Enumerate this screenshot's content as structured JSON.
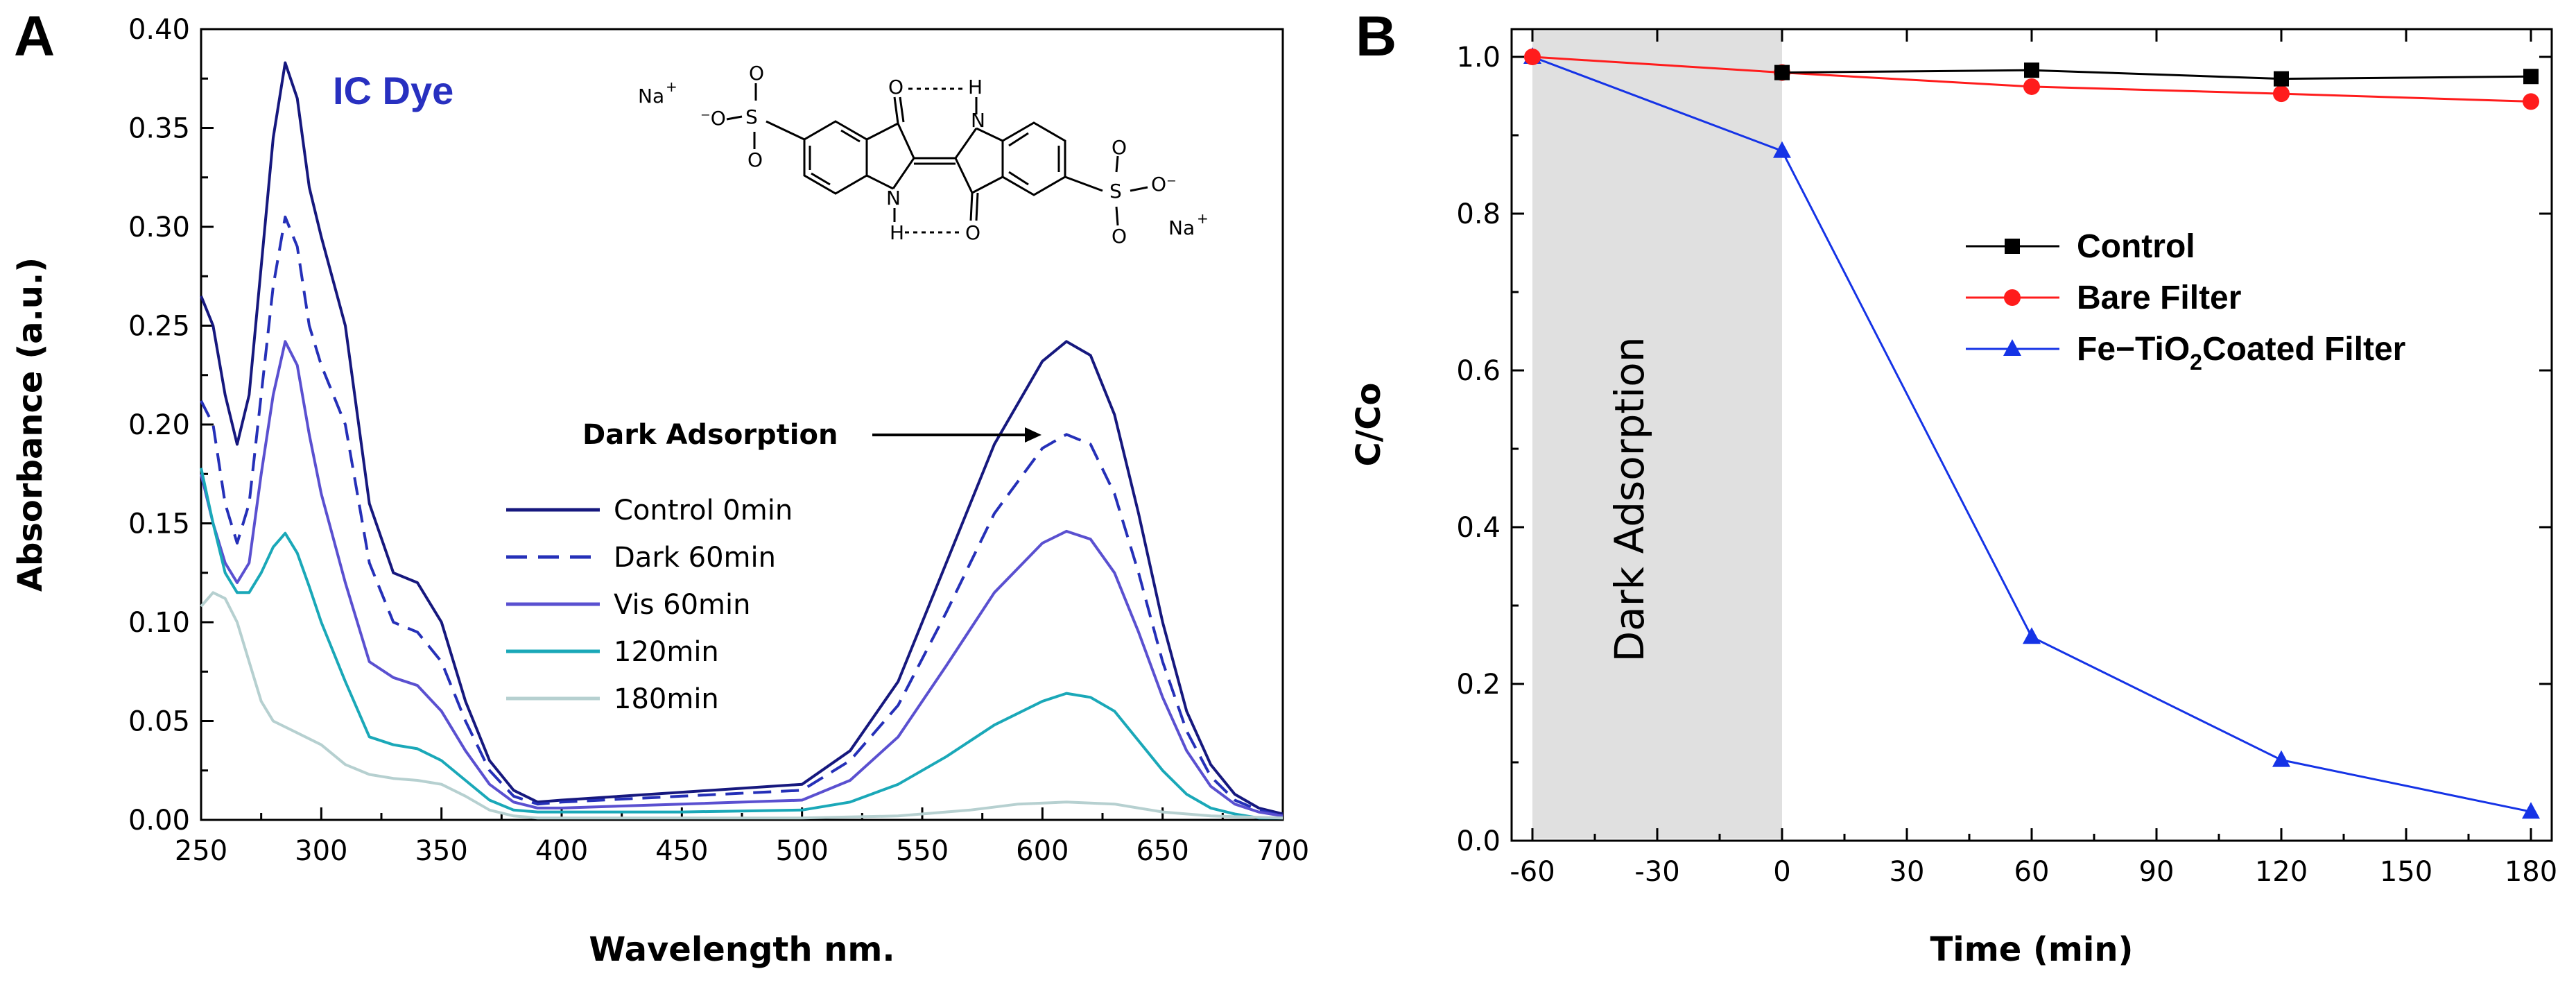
{
  "chart_data": [
    {
      "panel": "A",
      "type": "line",
      "xlabel": "Wavelength nm.",
      "ylabel": "Absorbance (a.u.)",
      "xlim": [
        250,
        700
      ],
      "ylim": [
        0,
        0.4
      ],
      "xticks": [
        "250",
        "300",
        "350",
        "400",
        "450",
        "500",
        "550",
        "600",
        "650",
        "700"
      ],
      "yticks": [
        "0.00",
        "0.05",
        "0.10",
        "0.15",
        "0.20",
        "0.25",
        "0.30",
        "0.35",
        "0.40"
      ],
      "annotation": "Dark Adsorption",
      "annotation_target": [
        610,
        0.193
      ],
      "inset_label": "IC Dye",
      "structure_labels": {
        "na_left": "Na",
        "na_right": "Na",
        "o_top": "O",
        "h_top": "H",
        "n_top": "N",
        "n_bottom": "N",
        "h_bottom": "H",
        "o_bottom": "O"
      },
      "legend_position": "center",
      "series": [
        {
          "name": "Control 0min",
          "color": "#16187e",
          "dash": "solid",
          "points": [
            [
              250,
              0.265
            ],
            [
              255,
              0.25
            ],
            [
              260,
              0.215
            ],
            [
              265,
              0.19
            ],
            [
              270,
              0.215
            ],
            [
              275,
              0.28
            ],
            [
              280,
              0.345
            ],
            [
              285,
              0.383
            ],
            [
              290,
              0.365
            ],
            [
              295,
              0.32
            ],
            [
              300,
              0.295
            ],
            [
              310,
              0.25
            ],
            [
              320,
              0.16
            ],
            [
              330,
              0.125
            ],
            [
              340,
              0.12
            ],
            [
              350,
              0.1
            ],
            [
              360,
              0.06
            ],
            [
              370,
              0.03
            ],
            [
              380,
              0.015
            ],
            [
              390,
              0.009
            ],
            [
              400,
              0.01
            ],
            [
              450,
              0.014
            ],
            [
              500,
              0.018
            ],
            [
              520,
              0.035
            ],
            [
              540,
              0.07
            ],
            [
              560,
              0.13
            ],
            [
              580,
              0.19
            ],
            [
              600,
              0.232
            ],
            [
              610,
              0.242
            ],
            [
              620,
              0.235
            ],
            [
              630,
              0.205
            ],
            [
              640,
              0.155
            ],
            [
              650,
              0.1
            ],
            [
              660,
              0.055
            ],
            [
              670,
              0.028
            ],
            [
              680,
              0.013
            ],
            [
              690,
              0.006
            ],
            [
              700,
              0.003
            ]
          ]
        },
        {
          "name": "Dark 60min",
          "color": "#2530b8",
          "dash": "dashed",
          "points": [
            [
              250,
              0.212
            ],
            [
              255,
              0.2
            ],
            [
              260,
              0.16
            ],
            [
              265,
              0.14
            ],
            [
              270,
              0.16
            ],
            [
              275,
              0.215
            ],
            [
              280,
              0.27
            ],
            [
              285,
              0.305
            ],
            [
              290,
              0.29
            ],
            [
              295,
              0.25
            ],
            [
              300,
              0.23
            ],
            [
              310,
              0.2
            ],
            [
              320,
              0.13
            ],
            [
              330,
              0.1
            ],
            [
              340,
              0.095
            ],
            [
              350,
              0.08
            ],
            [
              360,
              0.05
            ],
            [
              370,
              0.025
            ],
            [
              380,
              0.012
            ],
            [
              390,
              0.008
            ],
            [
              400,
              0.009
            ],
            [
              450,
              0.012
            ],
            [
              500,
              0.015
            ],
            [
              520,
              0.03
            ],
            [
              540,
              0.058
            ],
            [
              560,
              0.105
            ],
            [
              580,
              0.155
            ],
            [
              600,
              0.188
            ],
            [
              610,
              0.195
            ],
            [
              620,
              0.19
            ],
            [
              630,
              0.165
            ],
            [
              640,
              0.125
            ],
            [
              650,
              0.08
            ],
            [
              660,
              0.045
            ],
            [
              670,
              0.022
            ],
            [
              680,
              0.01
            ],
            [
              690,
              0.005
            ],
            [
              700,
              0.002
            ]
          ]
        },
        {
          "name": "Vis 60min",
          "color": "#5a50d0",
          "dash": "solid",
          "points": [
            [
              250,
              0.175
            ],
            [
              255,
              0.15
            ],
            [
              260,
              0.13
            ],
            [
              265,
              0.12
            ],
            [
              270,
              0.13
            ],
            [
              275,
              0.175
            ],
            [
              280,
              0.215
            ],
            [
              285,
              0.242
            ],
            [
              290,
              0.23
            ],
            [
              295,
              0.195
            ],
            [
              300,
              0.165
            ],
            [
              310,
              0.12
            ],
            [
              320,
              0.08
            ],
            [
              330,
              0.072
            ],
            [
              340,
              0.068
            ],
            [
              350,
              0.055
            ],
            [
              360,
              0.035
            ],
            [
              370,
              0.018
            ],
            [
              380,
              0.009
            ],
            [
              390,
              0.006
            ],
            [
              400,
              0.006
            ],
            [
              450,
              0.008
            ],
            [
              500,
              0.01
            ],
            [
              520,
              0.02
            ],
            [
              540,
              0.042
            ],
            [
              560,
              0.078
            ],
            [
              580,
              0.115
            ],
            [
              600,
              0.14
            ],
            [
              610,
              0.146
            ],
            [
              620,
              0.142
            ],
            [
              630,
              0.125
            ],
            [
              640,
              0.095
            ],
            [
              650,
              0.062
            ],
            [
              660,
              0.035
            ],
            [
              670,
              0.017
            ],
            [
              680,
              0.008
            ],
            [
              690,
              0.004
            ],
            [
              700,
              0.002
            ]
          ]
        },
        {
          "name": "120min",
          "color": "#1aa8b8",
          "dash": "solid",
          "points": [
            [
              250,
              0.178
            ],
            [
              255,
              0.15
            ],
            [
              260,
              0.125
            ],
            [
              265,
              0.115
            ],
            [
              270,
              0.115
            ],
            [
              275,
              0.125
            ],
            [
              280,
              0.138
            ],
            [
              285,
              0.145
            ],
            [
              290,
              0.135
            ],
            [
              295,
              0.118
            ],
            [
              300,
              0.1
            ],
            [
              310,
              0.07
            ],
            [
              320,
              0.042
            ],
            [
              330,
              0.038
            ],
            [
              340,
              0.036
            ],
            [
              350,
              0.03
            ],
            [
              360,
              0.02
            ],
            [
              370,
              0.01
            ],
            [
              380,
              0.005
            ],
            [
              390,
              0.004
            ],
            [
              400,
              0.004
            ],
            [
              450,
              0.004
            ],
            [
              500,
              0.005
            ],
            [
              520,
              0.009
            ],
            [
              540,
              0.018
            ],
            [
              560,
              0.032
            ],
            [
              580,
              0.048
            ],
            [
              600,
              0.06
            ],
            [
              610,
              0.064
            ],
            [
              620,
              0.062
            ],
            [
              630,
              0.055
            ],
            [
              640,
              0.04
            ],
            [
              650,
              0.025
            ],
            [
              660,
              0.013
            ],
            [
              670,
              0.006
            ],
            [
              680,
              0.003
            ],
            [
              690,
              0.001
            ],
            [
              700,
              0.001
            ]
          ]
        },
        {
          "name": "180min",
          "color": "#b6d0d0",
          "dash": "solid",
          "points": [
            [
              250,
              0.108
            ],
            [
              255,
              0.115
            ],
            [
              260,
              0.112
            ],
            [
              265,
              0.1
            ],
            [
              270,
              0.08
            ],
            [
              275,
              0.06
            ],
            [
              280,
              0.05
            ],
            [
              285,
              0.047
            ],
            [
              290,
              0.044
            ],
            [
              300,
              0.038
            ],
            [
              310,
              0.028
            ],
            [
              320,
              0.023
            ],
            [
              330,
              0.021
            ],
            [
              340,
              0.02
            ],
            [
              350,
              0.018
            ],
            [
              360,
              0.012
            ],
            [
              370,
              0.005
            ],
            [
              380,
              0.002
            ],
            [
              390,
              0.001
            ],
            [
              400,
              0.001
            ],
            [
              450,
              0.001
            ],
            [
              500,
              0.001
            ],
            [
              540,
              0.002
            ],
            [
              570,
              0.005
            ],
            [
              590,
              0.008
            ],
            [
              610,
              0.009
            ],
            [
              630,
              0.008
            ],
            [
              650,
              0.004
            ],
            [
              670,
              0.002
            ],
            [
              700,
              0.001
            ]
          ]
        }
      ]
    },
    {
      "panel": "B",
      "type": "line",
      "xlabel": "Time (min)",
      "ylabel": "C/Co",
      "xlim": [
        -60,
        180
      ],
      "ylim": [
        0,
        1.0
      ],
      "xticks": [
        "-60",
        "-30",
        "0",
        "30",
        "60",
        "90",
        "120",
        "150",
        "180"
      ],
      "yticks": [
        "0.0",
        "0.2",
        "0.4",
        "0.6",
        "0.8",
        "1.0"
      ],
      "shaded_region": {
        "x_from": -60,
        "x_to": 0,
        "label": "Dark Adsorption",
        "color": "#e0e0e0"
      },
      "legend_position": "center-right",
      "series": [
        {
          "name": "Control",
          "color": "#000000",
          "marker": "square",
          "x": [
            0,
            60,
            120,
            180
          ],
          "y": [
            0.98,
            0.983,
            0.972,
            0.975
          ]
        },
        {
          "name": "Bare Filter",
          "color": "#ff1c1c",
          "marker": "circle",
          "x": [
            -60,
            0,
            60,
            120,
            180
          ],
          "y": [
            1.0,
            0.98,
            0.962,
            0.953,
            0.943
          ]
        },
        {
          "name": "Fe-TiO2Coated Filter",
          "name_parts": [
            "Fe−TiO",
            "2",
            "Coated Filter"
          ],
          "color": "#1533e6",
          "marker": "triangle",
          "x": [
            -60,
            0,
            60,
            120,
            180
          ],
          "y": [
            1.0,
            0.88,
            0.26,
            0.103,
            0.037
          ]
        }
      ]
    }
  ]
}
